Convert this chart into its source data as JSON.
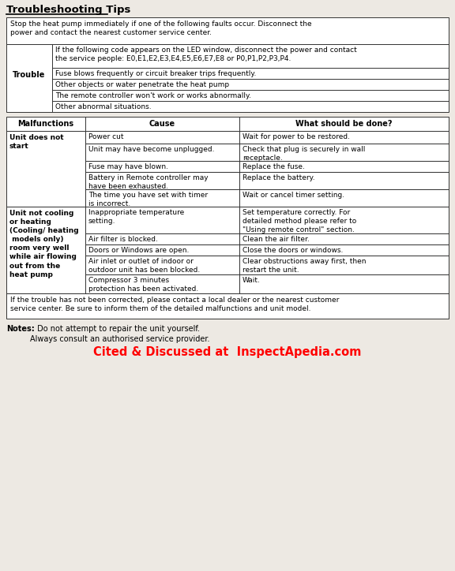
{
  "title": "Troubleshooting Tips",
  "bg_color": "#ede9e3",
  "warning_text": "Stop the heat pump immediately if one of the following faults occur. Disconnect the\npower and contact the nearest customer service center.",
  "trouble_label": "Trouble",
  "trouble_rows": [
    "If the following code appears on the LED window, disconnect the power and contact\nthe service people: E0,E1,E2,E3,E4,E5,E6,E7,E8 or P0,P1,P2,P3,P4.",
    "Fuse blows frequently or circuit breaker trips frequently.",
    "Other objects or water penetrate the heat pump",
    "The remote controller won't work or works abnormally.",
    "Other abnormal situations."
  ],
  "col_headers": [
    "Malfunctions",
    "Cause",
    "What should be done?"
  ],
  "main_rows": [
    {
      "malfunction": "Unit does not\nstart",
      "causes": [
        "Power cut",
        "Unit may have become unplugged.",
        "Fuse may have blown.",
        "Battery in Remote controller may\nhave been exhausted.",
        "The time you have set with timer\nis incorrect."
      ],
      "solutions": [
        "Wait for power to be restored.",
        "Check that plug is securely in wall\nreceptacle.",
        "Replace the fuse.",
        "Replace the battery.",
        "Wait or cancel timer setting."
      ]
    },
    {
      "malfunction": "Unit not cooling\nor heating\n(Cooling/ heating\n models only)\nroom very well\nwhile air flowing\nout from the\nheat pump",
      "causes": [
        "Inappropriate temperature\nsetting.",
        "Air filter is blocked.",
        "Doors or Windows are open.",
        "Air inlet or outlet of indoor or\noutdoor unit has been blocked.",
        "Compressor 3 minutes\nprotection has been activated."
      ],
      "solutions": [
        "Set temperature correctly. For\ndetailed method please refer to\n\"Using remote control\" section.",
        "Clean the air filter.",
        "Close the doors or windows.",
        "Clear obstructions away first, then\nrestart the unit.",
        "Wait."
      ]
    }
  ],
  "footer_text": "If the trouble has not been corrected, please contact a local dealer or the nearest customer\nservice center. Be sure to inform them of the detailed malfunctions and unit model.",
  "notes_bold": "Notes:",
  "notes_rest": " Do not attempt to repair the unit yourself.",
  "notes_line2": "Always consult an authorised service provider.",
  "watermark": "Cited & Discussed at  InspectApedia.com",
  "lmargin": 8,
  "rmargin": 8,
  "fs_body": 6.5,
  "fs_header": 7.0,
  "fs_title": 9.5
}
